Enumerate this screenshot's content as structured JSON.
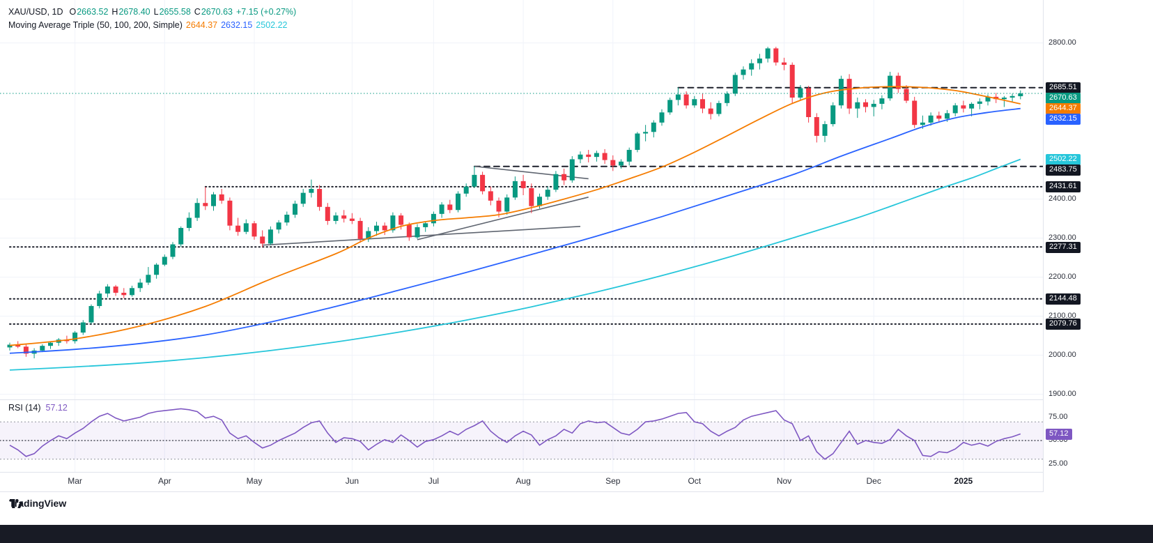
{
  "header": {
    "symbol": "XAU/USD, 1D",
    "o_label": "O",
    "o": "2663.52",
    "h_label": "H",
    "h": "2678.40",
    "l_label": "L",
    "l": "2655.58",
    "c_label": "C",
    "c": "2670.63",
    "change": "+7.15 (+0.27%)",
    "ma_label": "Moving Average Triple (50, 100, 200, Simple)",
    "ma50": "2644.37",
    "ma100": "2632.15",
    "ma200": "2502.22"
  },
  "rsi": {
    "label": "RSI (14)",
    "value": "57.12",
    "band": {
      "upper": 70,
      "middle": 50,
      "lower": 30
    },
    "axis_labels": [
      {
        "text": "75.00",
        "value": 75
      },
      {
        "text": "50.00",
        "value": 50
      },
      {
        "text": "25.00",
        "value": 25
      }
    ],
    "badge": {
      "text": "57.12",
      "value": 57.12
    },
    "series": [
      45,
      40,
      33,
      36,
      44,
      50,
      55,
      52,
      58,
      63,
      70,
      76,
      79,
      74,
      71,
      73,
      75,
      79,
      81,
      82,
      83,
      84,
      83,
      81,
      74,
      76,
      72,
      58,
      52,
      55,
      48,
      42,
      45,
      50,
      54,
      58,
      64,
      69,
      71,
      58,
      48,
      53,
      52,
      49,
      40,
      46,
      51,
      48,
      56,
      50,
      43,
      49,
      51,
      55,
      60,
      56,
      62,
      66,
      71,
      60,
      53,
      48,
      55,
      60,
      56,
      45,
      51,
      55,
      62,
      58,
      68,
      71,
      69,
      70,
      64,
      58,
      56,
      62,
      70,
      71,
      73,
      76,
      79,
      80,
      70,
      68,
      60,
      55,
      60,
      64,
      72,
      76,
      78,
      80,
      82,
      72,
      68,
      50,
      55,
      38,
      30,
      36,
      48,
      60,
      46,
      50,
      48,
      47,
      51,
      62,
      55,
      50,
      34,
      33,
      38,
      37,
      41,
      48,
      45,
      47,
      44,
      49,
      52,
      54,
      57.12
    ]
  },
  "colors": {
    "up": "#089981",
    "down": "#f23645",
    "ma50": "#f57c00",
    "ma100": "#2962ff",
    "ma200": "#26c6da",
    "rsi": "#7e57c2",
    "line_dark": "#1c1f2a",
    "grid": "#f0f3fa",
    "change": "#089981",
    "badge_dark": "#131722"
  },
  "chart_data": {
    "type": "candlestick",
    "symbol": "XAU/USD",
    "timeframe": "1D",
    "title": "XAU/USD daily with Moving Average Triple (50,100,200, Simple) and RSI(14)",
    "ylim": [
      1895,
      2815
    ],
    "current_price": 2670.63,
    "month_ticks": [
      {
        "label": "Mar",
        "index": 8
      },
      {
        "label": "Apr",
        "index": 19
      },
      {
        "label": "May",
        "index": 30
      },
      {
        "label": "Jun",
        "index": 42
      },
      {
        "label": "Jul",
        "index": 52
      },
      {
        "label": "Aug",
        "index": 63
      },
      {
        "label": "Sep",
        "index": 74
      },
      {
        "label": "Oct",
        "index": 84
      },
      {
        "label": "Nov",
        "index": 95
      },
      {
        "label": "Dec",
        "index": 106
      },
      {
        "label": "2025",
        "index": 117,
        "year": true
      }
    ],
    "ohlc": [
      [
        2020,
        2032,
        2012,
        2027
      ],
      [
        2027,
        2036,
        2018,
        2022
      ],
      [
        2022,
        2028,
        1996,
        2004
      ],
      [
        2004,
        2018,
        1992,
        2012
      ],
      [
        2012,
        2028,
        2008,
        2024
      ],
      [
        2024,
        2036,
        2016,
        2032
      ],
      [
        2032,
        2044,
        2024,
        2040
      ],
      [
        2040,
        2050,
        2030,
        2036
      ],
      [
        2036,
        2062,
        2030,
        2058
      ],
      [
        2058,
        2090,
        2052,
        2084
      ],
      [
        2084,
        2130,
        2080,
        2126
      ],
      [
        2126,
        2165,
        2120,
        2158
      ],
      [
        2158,
        2182,
        2148,
        2176
      ],
      [
        2176,
        2180,
        2152,
        2160
      ],
      [
        2160,
        2172,
        2146,
        2154
      ],
      [
        2154,
        2178,
        2150,
        2172
      ],
      [
        2172,
        2196,
        2162,
        2186
      ],
      [
        2186,
        2226,
        2180,
        2206
      ],
      [
        2206,
        2236,
        2196,
        2232
      ],
      [
        2232,
        2258,
        2228,
        2252
      ],
      [
        2252,
        2290,
        2246,
        2284
      ],
      [
        2284,
        2330,
        2278,
        2326
      ],
      [
        2326,
        2366,
        2318,
        2352
      ],
      [
        2352,
        2402,
        2344,
        2390
      ],
      [
        2390,
        2431,
        2372,
        2382
      ],
      [
        2382,
        2418,
        2370,
        2412
      ],
      [
        2412,
        2426,
        2388,
        2396
      ],
      [
        2396,
        2404,
        2320,
        2332
      ],
      [
        2332,
        2352,
        2306,
        2316
      ],
      [
        2316,
        2348,
        2310,
        2338
      ],
      [
        2338,
        2344,
        2296,
        2304
      ],
      [
        2304,
        2320,
        2277,
        2286
      ],
      [
        2286,
        2330,
        2282,
        2322
      ],
      [
        2322,
        2346,
        2312,
        2340
      ],
      [
        2340,
        2368,
        2332,
        2360
      ],
      [
        2360,
        2396,
        2352,
        2388
      ],
      [
        2388,
        2426,
        2380,
        2416
      ],
      [
        2416,
        2450,
        2404,
        2426
      ],
      [
        2426,
        2436,
        2370,
        2380
      ],
      [
        2380,
        2390,
        2334,
        2344
      ],
      [
        2344,
        2366,
        2336,
        2358
      ],
      [
        2358,
        2372,
        2340,
        2350
      ],
      [
        2350,
        2364,
        2336,
        2344
      ],
      [
        2344,
        2352,
        2288,
        2298
      ],
      [
        2298,
        2328,
        2290,
        2318
      ],
      [
        2318,
        2342,
        2306,
        2332
      ],
      [
        2332,
        2340,
        2308,
        2320
      ],
      [
        2320,
        2366,
        2314,
        2358
      ],
      [
        2358,
        2364,
        2322,
        2334
      ],
      [
        2334,
        2340,
        2293,
        2302
      ],
      [
        2302,
        2336,
        2298,
        2328
      ],
      [
        2328,
        2342,
        2316,
        2338
      ],
      [
        2338,
        2368,
        2330,
        2362
      ],
      [
        2362,
        2392,
        2352,
        2386
      ],
      [
        2386,
        2398,
        2364,
        2372
      ],
      [
        2372,
        2420,
        2366,
        2414
      ],
      [
        2414,
        2440,
        2406,
        2432
      ],
      [
        2432,
        2484,
        2428,
        2462
      ],
      [
        2462,
        2470,
        2412,
        2420
      ],
      [
        2420,
        2432,
        2384,
        2396
      ],
      [
        2396,
        2404,
        2353,
        2368
      ],
      [
        2368,
        2412,
        2360,
        2404
      ],
      [
        2404,
        2458,
        2398,
        2446
      ],
      [
        2446,
        2462,
        2410,
        2428
      ],
      [
        2428,
        2440,
        2364,
        2382
      ],
      [
        2382,
        2414,
        2376,
        2406
      ],
      [
        2406,
        2432,
        2398,
        2424
      ],
      [
        2424,
        2472,
        2418,
        2464
      ],
      [
        2464,
        2478,
        2436,
        2448
      ],
      [
        2448,
        2510,
        2442,
        2502
      ],
      [
        2502,
        2522,
        2492,
        2514
      ],
      [
        2514,
        2526,
        2494,
        2508
      ],
      [
        2508,
        2524,
        2496,
        2518
      ],
      [
        2518,
        2528,
        2490,
        2500
      ],
      [
        2500,
        2512,
        2472,
        2486
      ],
      [
        2486,
        2502,
        2478,
        2496
      ],
      [
        2496,
        2532,
        2486,
        2526
      ],
      [
        2526,
        2572,
        2520,
        2568
      ],
      [
        2568,
        2590,
        2548,
        2572
      ],
      [
        2572,
        2602,
        2558,
        2596
      ],
      [
        2596,
        2630,
        2588,
        2622
      ],
      [
        2622,
        2660,
        2616,
        2654
      ],
      [
        2654,
        2686,
        2640,
        2668
      ],
      [
        2668,
        2676,
        2632,
        2640
      ],
      [
        2640,
        2664,
        2634,
        2656
      ],
      [
        2656,
        2670,
        2620,
        2632
      ],
      [
        2632,
        2648,
        2604,
        2618
      ],
      [
        2618,
        2652,
        2612,
        2646
      ],
      [
        2646,
        2676,
        2638,
        2670
      ],
      [
        2670,
        2724,
        2664,
        2718
      ],
      [
        2718,
        2740,
        2706,
        2732
      ],
      [
        2732,
        2758,
        2716,
        2748
      ],
      [
        2748,
        2772,
        2732,
        2760
      ],
      [
        2760,
        2790,
        2750,
        2786
      ],
      [
        2786,
        2790,
        2742,
        2750
      ],
      [
        2750,
        2762,
        2730,
        2744
      ],
      [
        2744,
        2750,
        2644,
        2660
      ],
      [
        2660,
        2692,
        2652,
        2684
      ],
      [
        2684,
        2690,
        2596,
        2610
      ],
      [
        2610,
        2620,
        2545,
        2562
      ],
      [
        2562,
        2600,
        2546,
        2592
      ],
      [
        2592,
        2648,
        2586,
        2640
      ],
      [
        2640,
        2716,
        2632,
        2708
      ],
      [
        2708,
        2720,
        2618,
        2632
      ],
      [
        2632,
        2660,
        2608,
        2648
      ],
      [
        2648,
        2656,
        2622,
        2636
      ],
      [
        2636,
        2654,
        2612,
        2644
      ],
      [
        2644,
        2666,
        2630,
        2658
      ],
      [
        2658,
        2726,
        2652,
        2716
      ],
      [
        2716,
        2724,
        2672,
        2682
      ],
      [
        2682,
        2692,
        2646,
        2652
      ],
      [
        2652,
        2662,
        2582,
        2590
      ],
      [
        2590,
        2614,
        2580,
        2596
      ],
      [
        2596,
        2622,
        2588,
        2614
      ],
      [
        2614,
        2624,
        2596,
        2606
      ],
      [
        2606,
        2628,
        2598,
        2620
      ],
      [
        2620,
        2646,
        2612,
        2640
      ],
      [
        2640,
        2652,
        2622,
        2632
      ],
      [
        2632,
        2648,
        2612,
        2644
      ],
      [
        2644,
        2658,
        2630,
        2650
      ],
      [
        2650,
        2668,
        2640,
        2662
      ],
      [
        2662,
        2672,
        2646,
        2656
      ],
      [
        2656,
        2664,
        2636,
        2660
      ],
      [
        2660,
        2670,
        2650,
        2664
      ],
      [
        2663.52,
        2678.4,
        2655.58,
        2670.63
      ]
    ],
    "price_axis": {
      "labels": [
        {
          "text": "2800.00",
          "price": 2800
        },
        {
          "text": "2400.00",
          "price": 2400
        },
        {
          "text": "2300.00",
          "price": 2300
        },
        {
          "text": "2200.00",
          "price": 2200
        },
        {
          "text": "2100.00",
          "price": 2100
        },
        {
          "text": "2000.00",
          "price": 2000
        },
        {
          "text": "1900.00",
          "price": 1900
        }
      ],
      "badges": [
        {
          "text": "2685.51",
          "price": 2685.51,
          "bg": "#131722",
          "fg": "#ffffff"
        },
        {
          "text": "2670.63",
          "price": 2670.63,
          "bg": "#089981",
          "fg": "#ffffff"
        },
        {
          "text": "2644.37",
          "price": 2644.37,
          "bg": "#f57c00",
          "fg": "#ffffff"
        },
        {
          "text": "2632.15",
          "price": 2632.15,
          "bg": "#2962ff",
          "fg": "#ffffff"
        },
        {
          "text": "2502.22",
          "price": 2502.22,
          "bg": "#26c6da",
          "fg": "#ffffff"
        },
        {
          "text": "2483.75",
          "price": 2483.75,
          "bg": "#131722",
          "fg": "#ffffff"
        },
        {
          "text": "2431.61",
          "price": 2431.61,
          "bg": "#131722",
          "fg": "#ffffff"
        },
        {
          "text": "2277.31",
          "price": 2277.31,
          "bg": "#131722",
          "fg": "#ffffff"
        },
        {
          "text": "2144.48",
          "price": 2144.48,
          "bg": "#131722",
          "fg": "#ffffff"
        },
        {
          "text": "2079.76",
          "price": 2079.76,
          "bg": "#131722",
          "fg": "#ffffff"
        }
      ]
    },
    "moving_averages": [
      {
        "name": "SMA 50",
        "period": 50,
        "color": "#f57c00",
        "last_value": 2644.37,
        "points": [
          [
            0,
            2025
          ],
          [
            8,
            2042
          ],
          [
            16,
            2075
          ],
          [
            24,
            2125
          ],
          [
            32,
            2195
          ],
          [
            40,
            2260
          ],
          [
            44,
            2300
          ],
          [
            48,
            2330
          ],
          [
            52,
            2345
          ],
          [
            56,
            2352
          ],
          [
            60,
            2360
          ],
          [
            64,
            2378
          ],
          [
            68,
            2400
          ],
          [
            72,
            2424
          ],
          [
            76,
            2452
          ],
          [
            80,
            2482
          ],
          [
            84,
            2520
          ],
          [
            88,
            2562
          ],
          [
            92,
            2605
          ],
          [
            96,
            2645
          ],
          [
            100,
            2672
          ],
          [
            104,
            2684
          ],
          [
            108,
            2688
          ],
          [
            112,
            2686
          ],
          [
            116,
            2678
          ],
          [
            120,
            2662
          ],
          [
            124,
            2644
          ]
        ]
      },
      {
        "name": "SMA 100",
        "period": 100,
        "color": "#2962ff",
        "last_value": 2632.15,
        "points": [
          [
            0,
            2005
          ],
          [
            8,
            2015
          ],
          [
            16,
            2030
          ],
          [
            24,
            2052
          ],
          [
            32,
            2085
          ],
          [
            40,
            2125
          ],
          [
            48,
            2168
          ],
          [
            56,
            2212
          ],
          [
            64,
            2258
          ],
          [
            72,
            2305
          ],
          [
            80,
            2355
          ],
          [
            88,
            2408
          ],
          [
            96,
            2462
          ],
          [
            102,
            2510
          ],
          [
            108,
            2555
          ],
          [
            112,
            2585
          ],
          [
            116,
            2608
          ],
          [
            120,
            2622
          ],
          [
            124,
            2632
          ]
        ]
      },
      {
        "name": "SMA 200",
        "period": 200,
        "color": "#26c6da",
        "last_value": 2502.22,
        "points": [
          [
            0,
            1962
          ],
          [
            8,
            1970
          ],
          [
            16,
            1980
          ],
          [
            24,
            1994
          ],
          [
            32,
            2012
          ],
          [
            40,
            2034
          ],
          [
            48,
            2060
          ],
          [
            56,
            2090
          ],
          [
            64,
            2124
          ],
          [
            72,
            2162
          ],
          [
            80,
            2204
          ],
          [
            88,
            2250
          ],
          [
            96,
            2300
          ],
          [
            104,
            2352
          ],
          [
            110,
            2396
          ],
          [
            114,
            2426
          ],
          [
            118,
            2454
          ],
          [
            121,
            2478
          ],
          [
            124,
            2502
          ]
        ]
      }
    ],
    "horizontal_lines": [
      {
        "price": 2685.51,
        "style": "dashed",
        "start_index": 82
      },
      {
        "price": 2483.75,
        "style": "dashed",
        "start_index": 57
      },
      {
        "price": 2431.61,
        "style": "dotted",
        "start_index": 24
      },
      {
        "price": 2277.31,
        "style": "dotted",
        "start_index": 0
      },
      {
        "price": 2144.48,
        "style": "dotted",
        "start_index": 0
      },
      {
        "price": 2079.76,
        "style": "dotted",
        "start_index": 0
      }
    ],
    "trend_lines": [
      {
        "from": [
          31,
          2282
        ],
        "to": [
          70,
          2330
        ]
      },
      {
        "from": [
          50,
          2296
        ],
        "to": [
          71,
          2405
        ]
      },
      {
        "from": [
          57,
          2484
        ],
        "to": [
          71,
          2452
        ]
      }
    ]
  },
  "footer": {
    "logo_text": "TradingView"
  }
}
